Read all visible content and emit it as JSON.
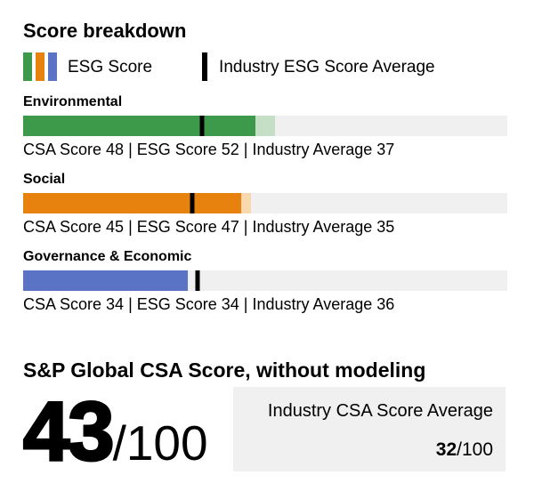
{
  "title": "Score breakdown",
  "legend": {
    "esg_label": "ESG Score",
    "industry_label": "Industry ESG Score Average",
    "swatch_colors": [
      "#3d9a4a",
      "#e8820e",
      "#5a73c4"
    ],
    "marker_color": "#000000"
  },
  "sections": [
    {
      "label": "Environmental",
      "csa_score": 48,
      "esg_score": 52,
      "industry_average": 37,
      "main_color": "#3d9a4a",
      "light_color": "#c5dfc7",
      "caption": "CSA Score 48 | ESG Score 52 | Industry Average 37"
    },
    {
      "label": "Social",
      "csa_score": 45,
      "esg_score": 47,
      "industry_average": 35,
      "main_color": "#e8820e",
      "light_color": "#f8d8ae",
      "caption": "CSA Score 45 | ESG Score 47 | Industry Average 35"
    },
    {
      "label": "Governance & Economic",
      "csa_score": 34,
      "esg_score": 34,
      "industry_average": 36,
      "main_color": "#5a73c4",
      "light_color": "#ccd4ef",
      "caption": "CSA Score 34 | ESG Score 34 | Industry Average 36"
    }
  ],
  "summary": {
    "heading": "S&P Global CSA Score, without modeling",
    "score_value": "43",
    "score_suffix": "/100",
    "industry_box": {
      "label": "Industry CSA Score Average",
      "value": "32",
      "suffix": "/100"
    }
  },
  "chart_data": {
    "type": "bar",
    "orientation": "horizontal",
    "title": "Score breakdown",
    "categories": [
      "Environmental",
      "Social",
      "Governance & Economic"
    ],
    "series": [
      {
        "name": "CSA Score",
        "values": [
          48,
          45,
          34
        ]
      },
      {
        "name": "ESG Score",
        "values": [
          52,
          47,
          34
        ]
      },
      {
        "name": "Industry Average",
        "values": [
          37,
          35,
          36
        ]
      }
    ],
    "xlim": [
      0,
      100
    ],
    "grid": false,
    "legend_position": "top",
    "bar_colors": [
      "#3d9a4a",
      "#e8820e",
      "#5a73c4"
    ],
    "track_color": "#f0f0f0",
    "marker_color": "#000000",
    "summary_score": {
      "label": "S&P Global CSA Score, without modeling",
      "value": 43,
      "max": 100
    },
    "industry_summary": {
      "label": "Industry CSA Score Average",
      "value": 32,
      "max": 100
    }
  }
}
